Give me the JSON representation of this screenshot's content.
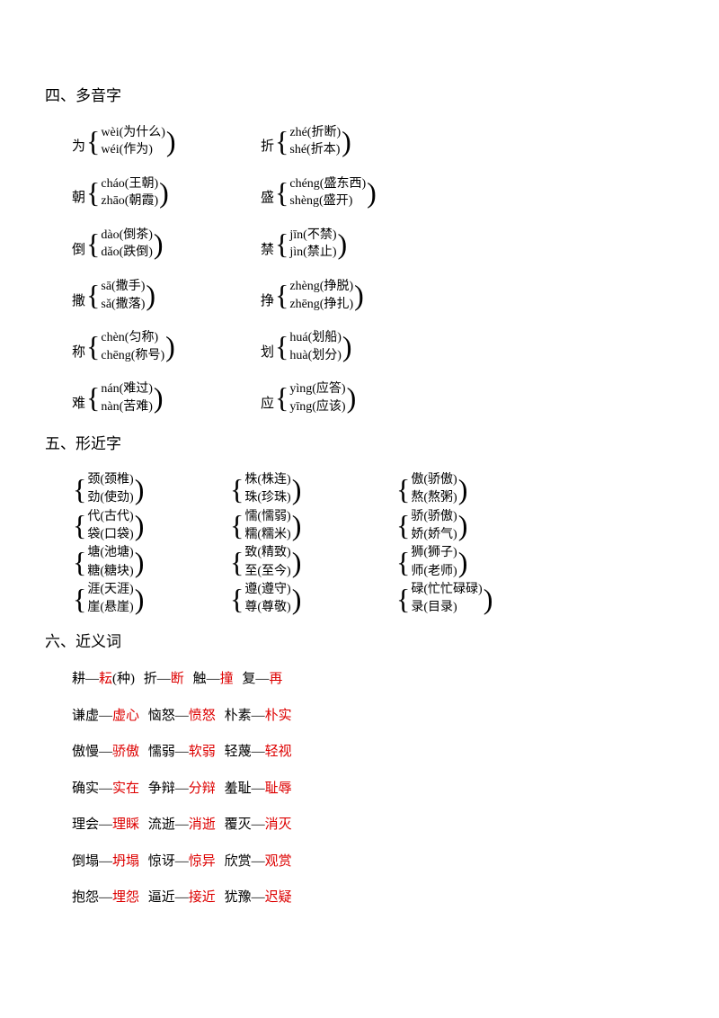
{
  "colors": {
    "text": "#000000",
    "accent": "#dd0000",
    "background": "#ffffff"
  },
  "sections": {
    "s4": {
      "title": "四、多音字"
    },
    "s5": {
      "title": "五、形近字"
    },
    "s6": {
      "title": "六、近义词"
    }
  },
  "polyphones": [
    [
      {
        "head": "为",
        "a": "wèi(为什么)",
        "b": " wéi(作为)"
      },
      {
        "head": "折",
        "a": "zhé(折断)",
        "b": "shé(折本)"
      }
    ],
    [
      {
        "head": "朝",
        "a": "cháo(王朝)",
        "b": "zhāo(朝霞)"
      },
      {
        "head": "盛",
        "a": "chéng(盛东西)",
        "b": " shèng(盛开)"
      }
    ],
    [
      {
        "head": "倒",
        "a": "dào(倒茶)",
        "b": "dǎo(跌倒)"
      },
      {
        "head": "禁",
        "a": "jīn(不禁)",
        "b": "jìn(禁止)"
      }
    ],
    [
      {
        "head": "撒",
        "a": "sā(撒手)",
        "b": "sǎ(撒落)"
      },
      {
        "head": "挣",
        "a": "zhèng(挣脱)",
        "b": "zhēng(挣扎)"
      }
    ],
    [
      {
        "head": "称",
        "a": " chèn(匀称)",
        "b": "chēng(称号)"
      },
      {
        "head": "划",
        "a": "huá(划船)",
        "b": "huà(划分)"
      }
    ],
    [
      {
        "head": "难",
        "a": "nán(难过)",
        "b": "nàn(苦难)"
      },
      {
        "head": "应",
        "a": "yìng(应答)",
        "b": "yīng(应该)"
      }
    ]
  ],
  "shapes": [
    [
      {
        "a": "颈(颈椎)",
        "b": "劲(使劲)"
      },
      {
        "a": "株(株连)",
        "b": "珠(珍珠)"
      },
      {
        "a": "傲(骄傲)",
        "b": "熬(熬粥)"
      }
    ],
    [
      {
        "a": "代(古代)",
        "b": "袋(口袋)"
      },
      {
        "a": "懦(懦弱)",
        "b": "糯(糯米)"
      },
      {
        "a": "骄(骄傲)",
        "b": "娇(娇气)"
      }
    ],
    [
      {
        "a": "塘(池塘)",
        "b": "糖(糖块)"
      },
      {
        "a": "致(精致)",
        "b": "至(至今)"
      },
      {
        "a": "狮(狮子)",
        "b": "师(老师)"
      }
    ],
    [
      {
        "a": "涯(天涯)",
        "b": "崖(悬崖)"
      },
      {
        "a": "遵(遵守)",
        "b": "尊(尊敬)"
      },
      {
        "a": "碌(忙忙碌碌)",
        "b": " 录(目录)"
      }
    ]
  ],
  "synonyms": [
    [
      {
        "l": "耕—",
        "r": "耘",
        "extra": "(种)"
      },
      {
        "l": " 折—",
        "r": "断"
      },
      {
        "l": "  触—",
        "r": "撞"
      },
      {
        "l": "  复—",
        "r": "再"
      }
    ],
    [
      {
        "l": "谦虚—",
        "r": "虚心"
      },
      {
        "l": "  恼怒—",
        "r": "愤怒"
      },
      {
        "l": "  朴素—",
        "r": "朴实"
      }
    ],
    [
      {
        "l": "傲慢—",
        "r": "骄傲"
      },
      {
        "l": "  懦弱—",
        "r": "软弱"
      },
      {
        "l": "  轻蔑—",
        "r": "轻视"
      }
    ],
    [
      {
        "l": "确实—",
        "r": "实在"
      },
      {
        "l": "  争辩—",
        "r": "分辩"
      },
      {
        "l": "  羞耻—",
        "r": "耻辱"
      }
    ],
    [
      {
        "l": "理会—",
        "r": "理睬"
      },
      {
        "l": "  流逝—",
        "r": "消逝"
      },
      {
        "l": "  覆灭—",
        "r": "消灭"
      }
    ],
    [
      {
        "l": "倒塌—",
        "r": "坍塌"
      },
      {
        "l": "  惊讶—",
        "r": "惊异"
      },
      {
        "l": "  欣赏—",
        "r": "观赏"
      }
    ],
    [
      {
        "l": "抱怨—",
        "r": "埋怨"
      },
      {
        "l": "  逼近—",
        "r": "接近"
      },
      {
        "l": "  犹豫—",
        "r": "迟疑"
      }
    ]
  ]
}
